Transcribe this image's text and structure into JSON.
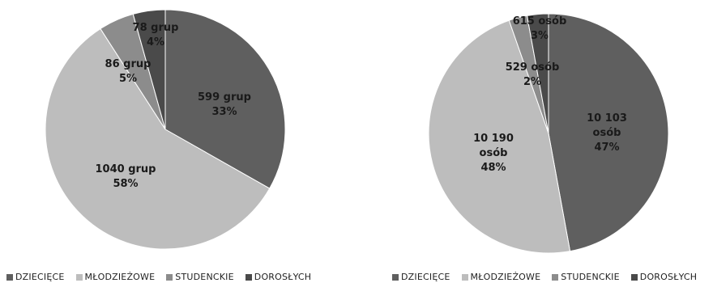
{
  "chart_data": [
    {
      "type": "pie",
      "categories": [
        "DZIECIĘCE",
        "MŁODZIEŻOWE",
        "STUDENCKIE",
        "DOROSŁYCH"
      ],
      "values": [
        599,
        1040,
        86,
        78
      ],
      "percents": [
        "33%",
        "58%",
        "5%",
        "4%"
      ],
      "labels": [
        "599 grup",
        "1040 grup",
        "86 grup",
        "78 grup"
      ],
      "colors": [
        "#5f5f5f",
        "#bdbdbd",
        "#8c8c8c",
        "#4a4a4a"
      ],
      "legend_position": "bottom"
    },
    {
      "type": "pie",
      "categories": [
        "DZIECIĘCE",
        "MŁODZIEŻOWE",
        "STUDENCKIE",
        "DOROSŁYCH"
      ],
      "values": [
        10103,
        10190,
        529,
        615
      ],
      "percents": [
        "47%",
        "48%",
        "2%",
        "3%"
      ],
      "labels": [
        "10 103 osób",
        "10 190 osób",
        "529 osób",
        "615 osób"
      ],
      "colors": [
        "#5f5f5f",
        "#bdbdbd",
        "#8c8c8c",
        "#4a4a4a"
      ],
      "legend_position": "bottom"
    }
  ]
}
